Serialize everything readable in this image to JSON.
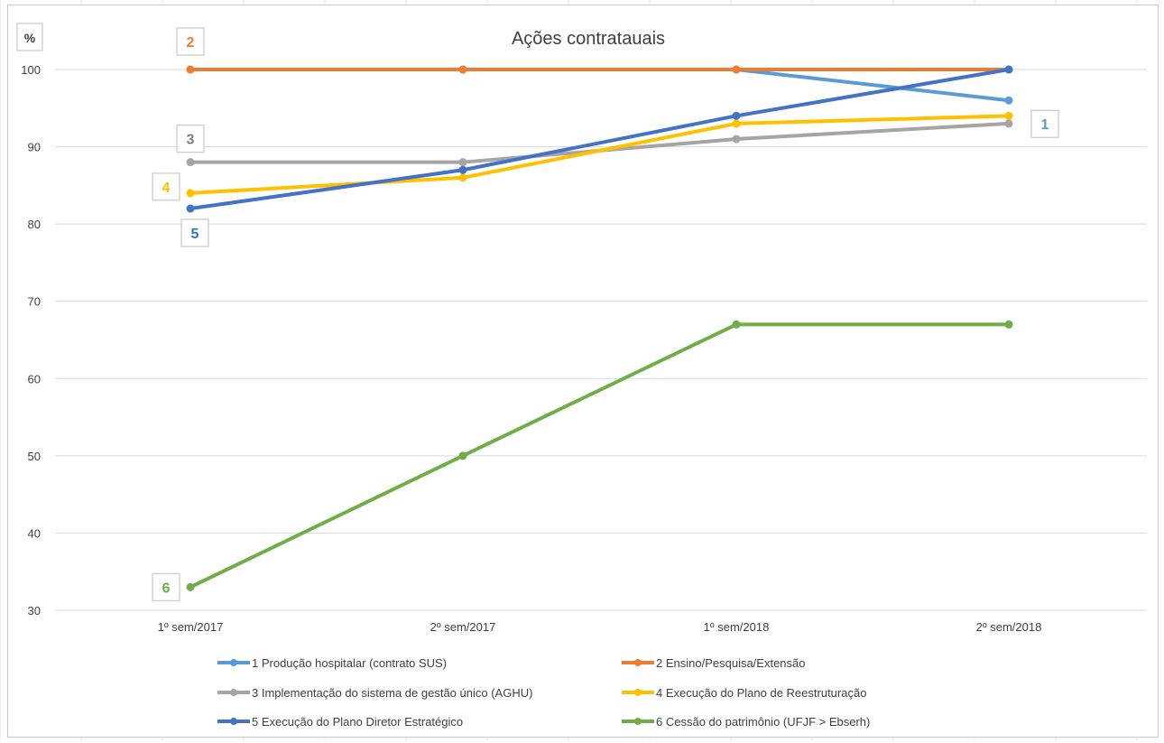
{
  "chart_data": {
    "type": "line",
    "title": "Ações contratauais",
    "ylabel": "%",
    "xlabel": "",
    "categories": [
      "1º sem/2017",
      "2º sem/2017",
      "1º sem/2018",
      "2º sem/2018"
    ],
    "ylim": [
      30,
      100
    ],
    "yticks": [
      30,
      40,
      50,
      60,
      70,
      80,
      90,
      100
    ],
    "grid": true,
    "legend": "bottom",
    "series": [
      {
        "name": "1 Produção hospitalar (contrato SUS)",
        "label": "1",
        "color": "#5B9BD5",
        "values": [
          100,
          100,
          100,
          96
        ]
      },
      {
        "name": "2 Ensino/Pesquisa/Extensão",
        "label": "2",
        "color": "#ED7D31",
        "values": [
          100,
          100,
          100,
          100
        ]
      },
      {
        "name": "3 Implementação do sistema de gestão único (AGHU)",
        "label": "3",
        "color": "#A5A5A5",
        "values": [
          88,
          88,
          91,
          93
        ]
      },
      {
        "name": "4 Execução do Plano de Reestruturação",
        "label": "4",
        "color": "#FFC000",
        "values": [
          84,
          86,
          93,
          94
        ]
      },
      {
        "name": "5 Execução do Plano Diretor Estratégico",
        "label": "5",
        "color": "#4472C4",
        "values": [
          82,
          87,
          94,
          100
        ]
      },
      {
        "name": "6 Cessão do patrimônio (UFJF > Ebserh)",
        "label": "6",
        "color": "#70AD47",
        "values": [
          33,
          50,
          67,
          67
        ]
      }
    ],
    "callouts": [
      {
        "series": 0,
        "point": 3,
        "text": "1",
        "color": "#5B9BD5"
      },
      {
        "series": 1,
        "point": 0,
        "text": "2",
        "color": "#ED7D31"
      },
      {
        "series": 2,
        "point": 0,
        "text": "3",
        "color": "#7F7F7F"
      },
      {
        "series": 3,
        "point": 0,
        "text": "4",
        "color": "#FFC000"
      },
      {
        "series": 4,
        "point": 0,
        "text": "5",
        "color": "#2E75B6"
      },
      {
        "series": 5,
        "point": 0,
        "text": "6",
        "color": "#70AD47"
      }
    ]
  }
}
